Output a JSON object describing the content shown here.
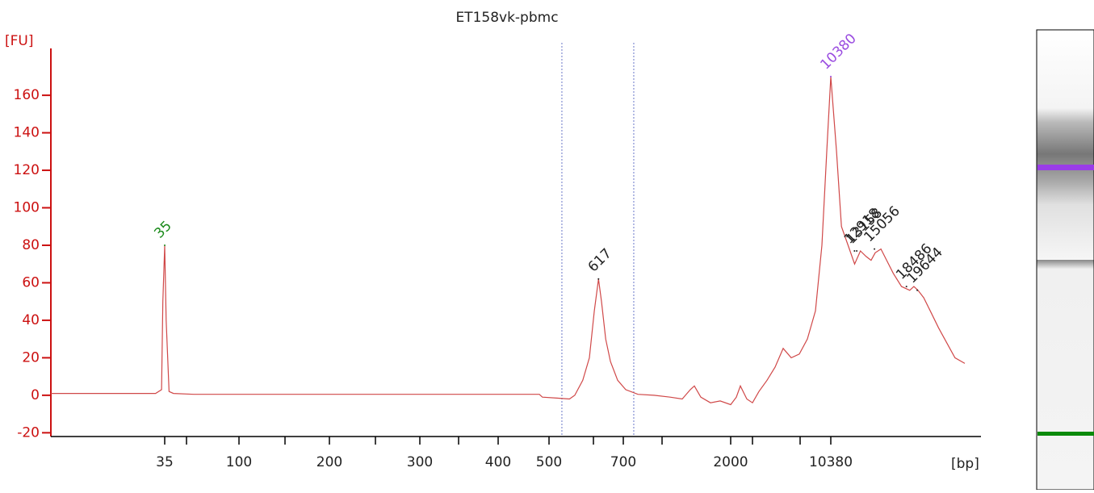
{
  "chart_data": {
    "type": "line",
    "title": "ET158vk-pbmc",
    "ylabel": "[FU]",
    "xlabel": "[bp]",
    "xlim": [
      10,
      24740
    ],
    "xticks": [
      35,
      100,
      200,
      300,
      400,
      500,
      700,
      2000,
      10380
    ],
    "xticks_minor": [
      50,
      150,
      250,
      350,
      600,
      1000,
      3000,
      7000
    ],
    "ylim": [
      -22,
      185
    ],
    "yticks": [
      -20,
      0,
      20,
      40,
      60,
      80,
      100,
      120,
      140,
      160
    ],
    "region": [
      529,
      781
    ],
    "series": [
      {
        "name": "ET158vk-pbmc",
        "color": "#d04848",
        "x": [
          10,
          25,
          33,
          34.3,
          34.6,
          35,
          36,
          38,
          41,
          57,
          193,
          282,
          383,
          481,
          487,
          518,
          546,
          558,
          576,
          591,
          603,
          617,
          627,
          641,
          657,
          681,
          719,
          813,
          938,
          1118,
          1294,
          1412,
          1471,
          1565,
          1706,
          1847,
          2000,
          2259,
          2444,
          2741,
          3000,
          3542,
          4220,
          4898,
          5576,
          6254,
          6932,
          7800,
          8689,
          9400,
          9933,
          10380,
          10997,
          11525,
          12230,
          12935,
          13552,
          14168,
          14697,
          15137,
          15754,
          16370,
          17076,
          17957,
          18838,
          19278,
          19719,
          20336,
          21040,
          21921,
          22802,
          23683,
          24740
        ],
        "values": [
          1,
          1,
          1,
          3,
          50,
          80,
          40,
          2,
          1,
          0.5,
          0.5,
          0.5,
          0.5,
          0.5,
          -1,
          -1.5,
          -2,
          0,
          8,
          20,
          45,
          62,
          50,
          30,
          18,
          8,
          3,
          0.5,
          0,
          -1,
          -2,
          3,
          5,
          -1,
          -4,
          -3,
          -5,
          -1,
          5,
          -2,
          -4,
          2,
          8,
          15,
          25,
          20,
          22,
          30,
          45,
          80,
          130,
          170,
          130,
          90,
          80,
          70,
          77,
          74,
          72,
          76,
          78,
          72,
          65,
          58,
          56,
          58,
          56,
          52,
          45,
          36,
          28,
          20,
          17
        ]
      }
    ],
    "peaks": [
      {
        "bp": 35,
        "fu": 80,
        "color": "#1a8a1a"
      },
      {
        "bp": 617,
        "fu": 62,
        "color": "#222222"
      },
      {
        "bp": 10380,
        "fu": 170,
        "color": "#9a4ce0"
      },
      {
        "bp": 12918,
        "fu": 77,
        "color": "#222222"
      },
      {
        "bp": 13158,
        "fu": 77,
        "color": "#222222"
      },
      {
        "bp": 15056,
        "fu": 78,
        "color": "#222222"
      },
      {
        "bp": 18486,
        "fu": 58,
        "color": "#222222"
      },
      {
        "bp": 19644,
        "fu": 56,
        "color": "#222222"
      }
    ]
  }
}
